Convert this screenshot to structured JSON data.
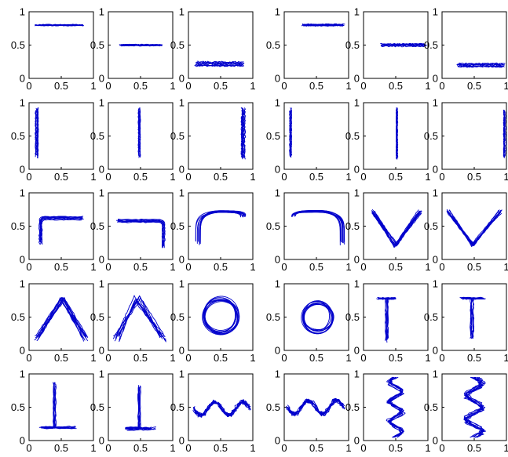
{
  "chart_data": {
    "type": "line",
    "rows": 5,
    "cols": 6,
    "xlim": [
      0,
      1
    ],
    "ylim": [
      0,
      1
    ],
    "x_ticks": [
      "0",
      "0.5",
      "1"
    ],
    "y_ticks": [
      "0",
      "0.5",
      "1"
    ],
    "grid": false,
    "legend": "none",
    "line_color": "#0000cc",
    "panels": [
      {
        "gesture": "hline",
        "y": 0.8,
        "x_range": [
          0.12,
          0.82
        ],
        "traces": 8,
        "spread": 0.015
      },
      {
        "gesture": "hline",
        "y": 0.5,
        "x_range": [
          0.2,
          0.82
        ],
        "traces": 8,
        "spread": 0.012
      },
      {
        "gesture": "hline",
        "y": 0.22,
        "x_range": [
          0.12,
          0.85
        ],
        "traces": 10,
        "spread": 0.03
      },
      {
        "gesture": "hline",
        "y": 0.8,
        "x_range": [
          0.3,
          0.92
        ],
        "traces": 8,
        "spread": 0.015
      },
      {
        "gesture": "hline",
        "y": 0.5,
        "x_range": [
          0.28,
          0.95
        ],
        "traces": 8,
        "spread": 0.02
      },
      {
        "gesture": "hline",
        "y": 0.2,
        "x_range": [
          0.25,
          0.95
        ],
        "traces": 9,
        "spread": 0.025
      },
      {
        "gesture": "vline",
        "x": 0.12,
        "y_range": [
          0.2,
          0.9
        ],
        "traces": 9,
        "spread": 0.02
      },
      {
        "gesture": "vline",
        "x": 0.48,
        "y_range": [
          0.2,
          0.9
        ],
        "traces": 8,
        "spread": 0.015
      },
      {
        "gesture": "vline",
        "x": 0.85,
        "y_range": [
          0.18,
          0.9
        ],
        "traces": 10,
        "spread": 0.03
      },
      {
        "gesture": "vline",
        "x": 0.1,
        "y_range": [
          0.2,
          0.9
        ],
        "traces": 8,
        "spread": 0.015
      },
      {
        "gesture": "vline",
        "x": 0.52,
        "y_range": [
          0.18,
          0.9
        ],
        "traces": 8,
        "spread": 0.012
      },
      {
        "gesture": "vline",
        "x": 0.97,
        "y_range": [
          0.2,
          0.88
        ],
        "traces": 8,
        "spread": 0.02
      },
      {
        "gesture": "corner_tl",
        "x0": 0.18,
        "x1": 0.82,
        "y0": 0.25,
        "y1": 0.62,
        "traces": 9,
        "spread": 0.025
      },
      {
        "gesture": "corner_tr",
        "x0": 0.15,
        "x1": 0.85,
        "y0": 0.2,
        "y1": 0.58,
        "traces": 9,
        "spread": 0.025
      },
      {
        "gesture": "arch_left",
        "x0": 0.15,
        "x1": 0.85,
        "y0": 0.25,
        "y1": 0.72,
        "traces": 10,
        "spread": 0.04
      },
      {
        "gesture": "arch_right",
        "x0": 0.15,
        "x1": 0.9,
        "y0": 0.25,
        "y1": 0.72,
        "traces": 10,
        "spread": 0.04
      },
      {
        "gesture": "v",
        "x0": 0.15,
        "x1": 0.88,
        "xm": 0.5,
        "ytop": 0.72,
        "ybot": 0.22,
        "traces": 10,
        "spread": 0.03
      },
      {
        "gesture": "v",
        "x0": 0.1,
        "x1": 0.9,
        "xm": 0.48,
        "ytop": 0.72,
        "ybot": 0.22,
        "traces": 10,
        "spread": 0.03
      },
      {
        "gesture": "caret",
        "x0": 0.12,
        "x1": 0.88,
        "xm": 0.52,
        "ytop": 0.78,
        "ybot": 0.18,
        "traces": 10,
        "spread": 0.04
      },
      {
        "gesture": "caret",
        "x0": 0.12,
        "x1": 0.85,
        "xm": 0.45,
        "ytop": 0.78,
        "ybot": 0.18,
        "traces": 10,
        "spread": 0.05
      },
      {
        "gesture": "circle",
        "cx": 0.5,
        "cy": 0.52,
        "r": 0.26,
        "traces": 9,
        "spread": 0.04
      },
      {
        "gesture": "circle",
        "cx": 0.52,
        "cy": 0.5,
        "r": 0.22,
        "traces": 9,
        "spread": 0.035
      },
      {
        "gesture": "tee",
        "xs": 0.22,
        "xe": 0.5,
        "ytop": 0.78,
        "ybot": 0.15,
        "traces": 8,
        "spread": 0.02
      },
      {
        "gesture": "tee",
        "xs": 0.3,
        "xe": 0.65,
        "ytop": 0.78,
        "ybot": 0.18,
        "traces": 8,
        "spread": 0.025
      },
      {
        "gesture": "perp",
        "xs": 0.2,
        "xe": 0.7,
        "xv": 0.4,
        "ybase": 0.2,
        "ytop": 0.85,
        "traces": 8,
        "spread": 0.02
      },
      {
        "gesture": "perp",
        "xs": 0.28,
        "xe": 0.7,
        "xv": 0.48,
        "ybase": 0.18,
        "ytop": 0.8,
        "traces": 8,
        "spread": 0.02
      },
      {
        "gesture": "wave_h",
        "x0": 0.08,
        "x1": 0.95,
        "ymid": 0.48,
        "amp": 0.1,
        "cycles": 2,
        "traces": 9,
        "spread": 0.03
      },
      {
        "gesture": "wave_h",
        "x0": 0.05,
        "x1": 0.92,
        "ymid": 0.5,
        "amp": 0.1,
        "cycles": 2,
        "traces": 9,
        "spread": 0.03
      },
      {
        "gesture": "wave_v",
        "y0": 0.05,
        "y1": 0.95,
        "xmid": 0.5,
        "amp": 0.1,
        "cycles": 3,
        "traces": 9,
        "spread": 0.04
      },
      {
        "gesture": "wave_v",
        "y0": 0.05,
        "y1": 0.95,
        "xmid": 0.5,
        "amp": 0.12,
        "cycles": 2.5,
        "traces": 9,
        "spread": 0.05
      }
    ]
  }
}
